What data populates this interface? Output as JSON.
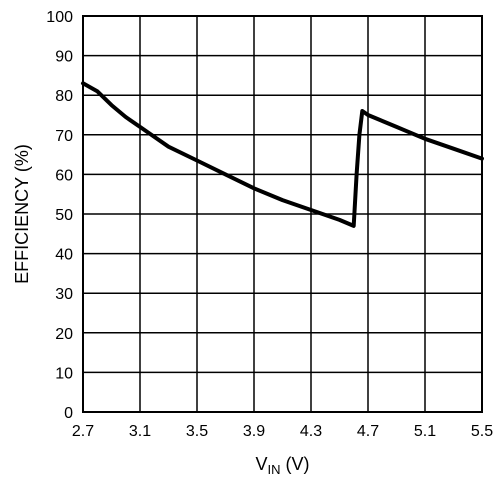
{
  "chart_data": {
    "type": "line",
    "title": "",
    "xlabel": "V",
    "xlabel_sub": "IN",
    "xlabel_unit": " (V)",
    "ylabel": "EFFICIENCY (%)",
    "xlim": [
      2.7,
      5.5
    ],
    "ylim": [
      0,
      100
    ],
    "grid": true,
    "legend": "none",
    "line_color": "#000000",
    "grid_color": "#000000",
    "x_ticks": [
      "2.7",
      "3.1",
      "3.5",
      "3.9",
      "4.3",
      "4.7",
      "5.1",
      "5.5"
    ],
    "y_ticks": [
      "0",
      "10",
      "20",
      "30",
      "40",
      "50",
      "60",
      "70",
      "80",
      "90",
      "100"
    ],
    "series": [
      {
        "x": [
          2.7,
          2.8,
          2.9,
          3.0,
          3.1,
          3.3,
          3.5,
          3.7,
          3.9,
          4.1,
          4.3,
          4.5,
          4.6,
          4.62,
          4.64,
          4.66,
          4.7,
          4.9,
          5.1,
          5.3,
          5.5
        ],
        "y": [
          83.0,
          81.0,
          77.5,
          74.5,
          72.0,
          67.0,
          63.5,
          60.0,
          56.5,
          53.5,
          51.0,
          48.5,
          47.0,
          60.0,
          70.0,
          76.0,
          75.0,
          72.0,
          69.0,
          66.5,
          64.0
        ]
      }
    ]
  }
}
